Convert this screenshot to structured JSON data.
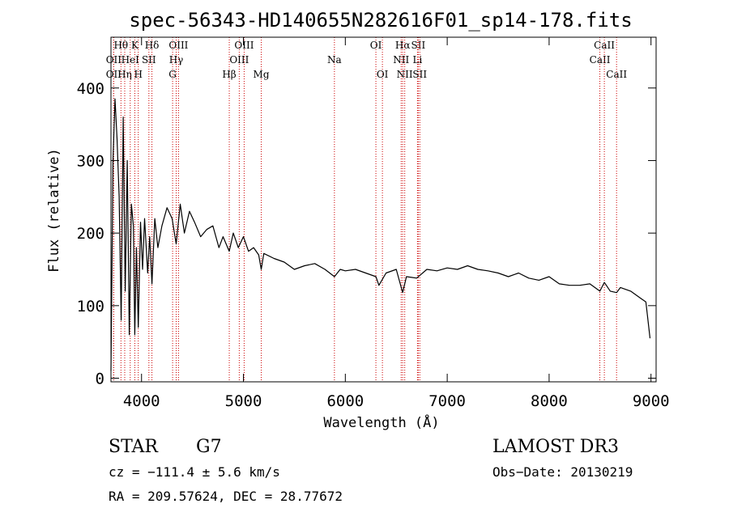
{
  "chart_data": {
    "type": "line",
    "title": "spec-56343-HD140655N282616F01_sp14-178.fits",
    "xlabel": "Wavelength (Å)",
    "ylabel": "Flux (relative)",
    "xlim": [
      3700,
      9050
    ],
    "ylim": [
      -5,
      470
    ],
    "xticks": [
      4000,
      5000,
      6000,
      7000,
      8000,
      9000
    ],
    "yticks": [
      0,
      100,
      200,
      300,
      400
    ],
    "grid": false,
    "spectrum": {
      "name": "flux",
      "x": [
        3700,
        3720,
        3740,
        3760,
        3780,
        3800,
        3820,
        3840,
        3860,
        3880,
        3900,
        3920,
        3934,
        3950,
        3968,
        3990,
        4010,
        4030,
        4060,
        4080,
        4102,
        4130,
        4160,
        4200,
        4250,
        4300,
        4340,
        4380,
        4420,
        4470,
        4520,
        4580,
        4640,
        4700,
        4760,
        4800,
        4861,
        4900,
        4950,
        5000,
        5050,
        5100,
        5150,
        5175,
        5200,
        5300,
        5400,
        5500,
        5600,
        5700,
        5800,
        5893,
        5950,
        6000,
        6100,
        6200,
        6300,
        6330,
        6400,
        6500,
        6563,
        6600,
        6700,
        6800,
        6900,
        7000,
        7100,
        7200,
        7300,
        7400,
        7500,
        7600,
        7700,
        7800,
        7900,
        8000,
        8100,
        8200,
        8300,
        8400,
        8498,
        8542,
        8600,
        8662,
        8700,
        8800,
        8900,
        8950,
        8990
      ],
      "y": [
        10,
        300,
        385,
        330,
        250,
        80,
        360,
        120,
        300,
        60,
        240,
        210,
        60,
        180,
        70,
        215,
        150,
        220,
        145,
        195,
        130,
        220,
        180,
        210,
        235,
        220,
        185,
        240,
        200,
        230,
        215,
        195,
        205,
        210,
        180,
        195,
        175,
        200,
        180,
        195,
        175,
        180,
        170,
        150,
        172,
        165,
        160,
        150,
        155,
        158,
        150,
        140,
        150,
        148,
        150,
        145,
        140,
        128,
        145,
        150,
        118,
        140,
        138,
        150,
        148,
        152,
        150,
        155,
        150,
        148,
        145,
        140,
        145,
        138,
        135,
        140,
        130,
        128,
        128,
        130,
        120,
        132,
        120,
        118,
        125,
        120,
        110,
        105,
        55
      ]
    },
    "lines": [
      {
        "name": "OII",
        "x": 3727,
        "row": 1
      },
      {
        "name": "OII",
        "x": 3727,
        "row": 2
      },
      {
        "name": "Hθ",
        "x": 3798,
        "row": 0
      },
      {
        "name": "Hη",
        "x": 3835,
        "row": 2
      },
      {
        "name": "HeI",
        "x": 3889,
        "row": 1
      },
      {
        "name": "K",
        "x": 3934,
        "row": 0
      },
      {
        "name": "H",
        "x": 3968,
        "row": 2
      },
      {
        "name": "SII",
        "x": 4072,
        "row": 1
      },
      {
        "name": "Hδ",
        "x": 4102,
        "row": 0
      },
      {
        "name": "Hγ",
        "x": 4340,
        "row": 1
      },
      {
        "name": "G",
        "x": 4305,
        "row": 2
      },
      {
        "name": "OIII",
        "x": 4363,
        "row": 0
      },
      {
        "name": "Hβ",
        "x": 4861,
        "row": 2
      },
      {
        "name": "OIII",
        "x": 4959,
        "row": 1
      },
      {
        "name": "OIII",
        "x": 5007,
        "row": 0
      },
      {
        "name": "Mg",
        "x": 5175,
        "row": 2
      },
      {
        "name": "Na",
        "x": 5893,
        "row": 1
      },
      {
        "name": "OI",
        "x": 6300,
        "row": 0
      },
      {
        "name": "OI",
        "x": 6364,
        "row": 2
      },
      {
        "name": "NII",
        "x": 6548,
        "row": 1
      },
      {
        "name": "Hα",
        "x": 6563,
        "row": 0
      },
      {
        "name": "NII",
        "x": 6583,
        "row": 2
      },
      {
        "name": "Li",
        "x": 6708,
        "row": 1
      },
      {
        "name": "SII",
        "x": 6716,
        "row": 0
      },
      {
        "name": "SII",
        "x": 6731,
        "row": 2
      },
      {
        "name": "CaII",
        "x": 8498,
        "row": 1
      },
      {
        "name": "CaII",
        "x": 8542,
        "row": 0
      },
      {
        "name": "CaII",
        "x": 8662,
        "row": 2
      }
    ]
  },
  "info": {
    "class_label": "STAR",
    "subclass": "G7",
    "survey": "LAMOST DR3",
    "cz": "cz = −111.4 ± 5.6 km/s",
    "obs_date": "Obs−Date: 20130219",
    "coords": "RA = 209.57624, DEC =  28.77672"
  },
  "colors": {
    "spectrum": "#000000",
    "line_markers": "#cc0000",
    "axes": "#000000"
  }
}
